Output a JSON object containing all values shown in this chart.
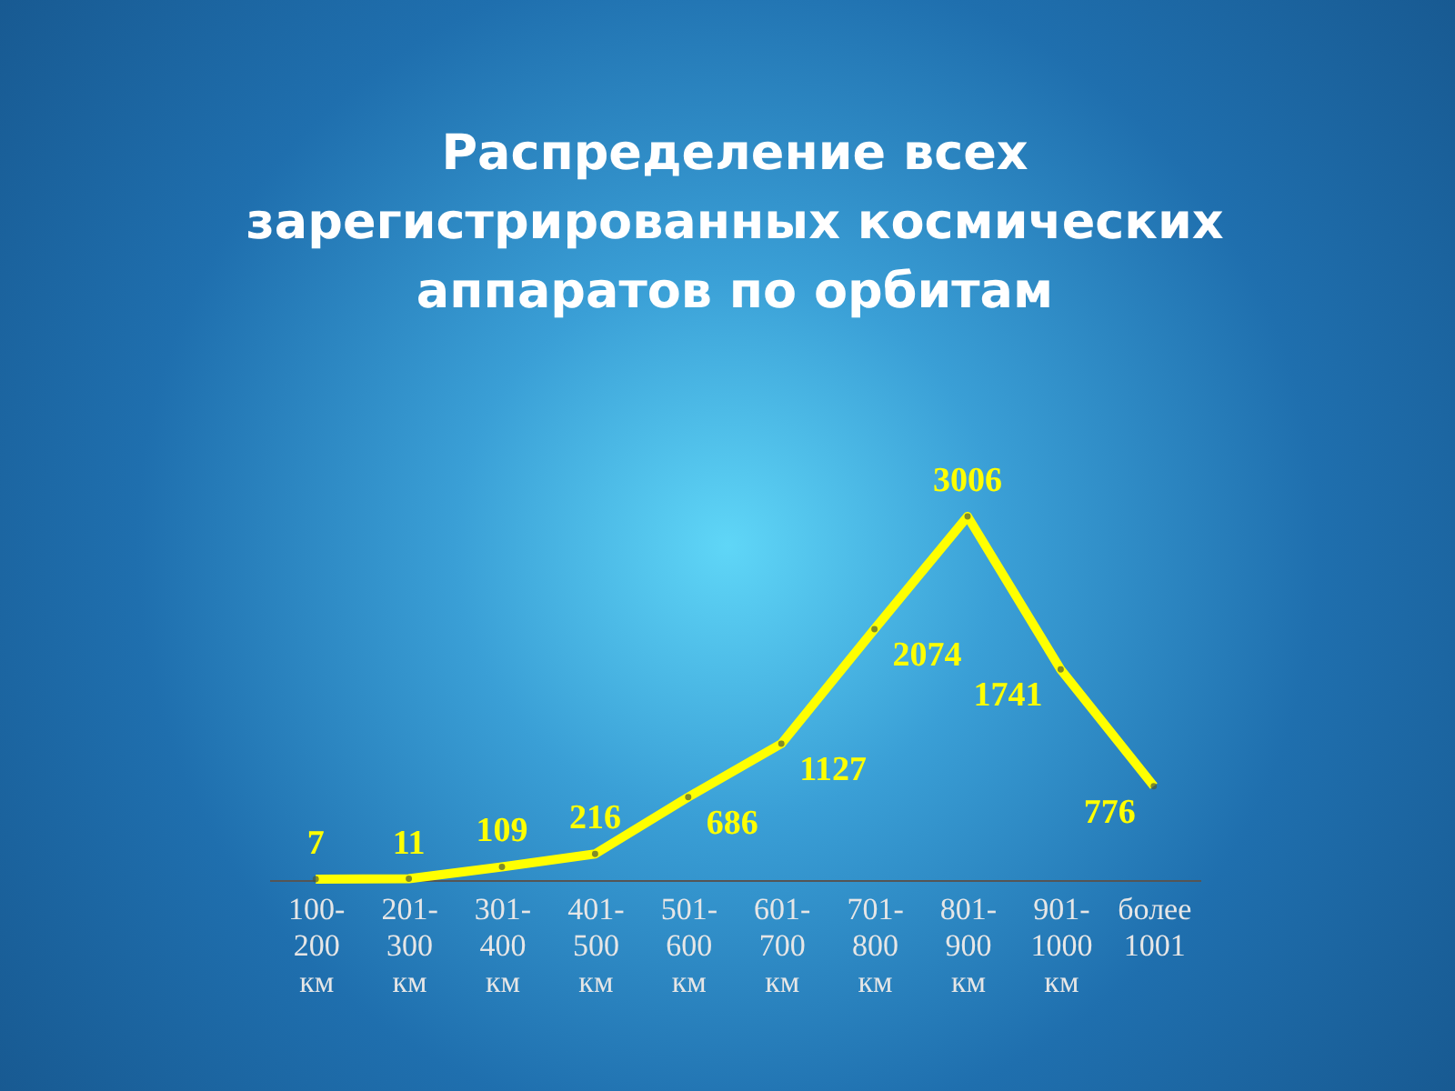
{
  "chart_data": {
    "type": "line",
    "title": "Распределение всех зарегистрированных космических аппаратов по орбитам",
    "categories": [
      "100- 200 км",
      "201- 300 км",
      "301- 400 км",
      "401- 500 км",
      "501- 600 км",
      "601- 700 км",
      "701- 800 км",
      "801- 900 км",
      "901- 1000 км",
      "более 1001"
    ],
    "series": [
      {
        "color": "#ffff00",
        "values": [
          7,
          11,
          109,
          216,
          686,
          1127,
          2074,
          3006,
          1741,
          776
        ]
      }
    ],
    "data_labels": true,
    "marker": "circle"
  }
}
